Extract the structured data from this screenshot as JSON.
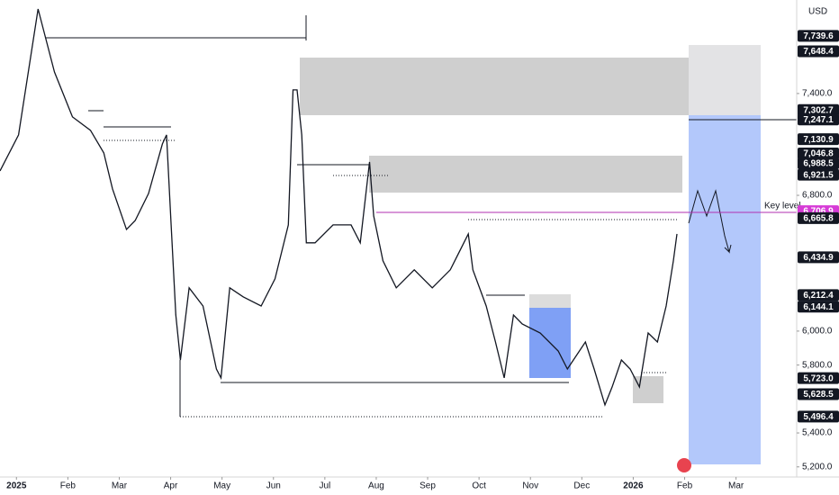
{
  "chart_data": {
    "type": "line",
    "currency": "USD",
    "annotation": "Key level",
    "x": [
      -0.32,
      0.04,
      0.42,
      0.74,
      1.09,
      1.44,
      1.7,
      1.87,
      2.14,
      2.31,
      2.57,
      2.84,
      2.92,
      3.01,
      3.1,
      3.19,
      3.36,
      3.63,
      3.89,
      3.98,
      4.15,
      4.41,
      4.76,
      5.03,
      5.29,
      5.38,
      5.46,
      5.55,
      5.64,
      5.81,
      6.16,
      6.51,
      6.69,
      6.87,
      6.95,
      7.13,
      7.39,
      7.74,
      8.09,
      8.44,
      8.79,
      8.88,
      9.14,
      9.32,
      9.49,
      9.67,
      9.84,
      10.19,
      10.54,
      10.72,
      11.07,
      11.24,
      11.45,
      11.59,
      11.77,
      11.94,
      12.12,
      12.29,
      12.47,
      12.64,
      12.78,
      12.85
    ],
    "series": [
      {
        "color": "#131722",
        "values": [
          6944,
          7156,
          7898,
          7527,
          7262,
          7183,
          7050,
          6838,
          6599,
          6652,
          6811,
          7103,
          7156,
          6626,
          6095,
          5830,
          6255,
          6148,
          5777,
          5724,
          6255,
          6202,
          6148,
          6308,
          6626,
          7421,
          7421,
          7156,
          6520,
          6520,
          6626,
          6626,
          6520,
          6997,
          6679,
          6414,
          6255,
          6361,
          6255,
          6361,
          6573,
          6361,
          6148,
          5936,
          5724,
          6095,
          6042,
          5989,
          5883,
          5777,
          5936,
          5777,
          5565,
          5671,
          5830,
          5777,
          5671,
          5989,
          5936,
          6148,
          6414,
          6573
        ]
      }
    ],
    "xlim": [
      -0.32,
      15.18
    ],
    "ylim": [
      5151,
      7951
    ],
    "xticks": [
      {
        "value": 0,
        "label": "2025"
      },
      {
        "value": 1,
        "label": "Feb"
      },
      {
        "value": 2,
        "label": "Mar"
      },
      {
        "value": 3,
        "label": "Apr"
      },
      {
        "value": 4,
        "label": "May"
      },
      {
        "value": 5,
        "label": "Jun"
      },
      {
        "value": 6,
        "label": "Jul"
      },
      {
        "value": 7,
        "label": "Aug"
      },
      {
        "value": 8,
        "label": "Sep"
      },
      {
        "value": 9,
        "label": "Oct"
      },
      {
        "value": 10,
        "label": "Nov"
      },
      {
        "value": 11,
        "label": "Dec"
      },
      {
        "value": 12,
        "label": "2026"
      },
      {
        "value": 13,
        "label": "Feb"
      },
      {
        "value": 14,
        "label": "Mar"
      }
    ],
    "yticks": [
      {
        "value": 5200,
        "label": "5,200.0"
      },
      {
        "value": 5400,
        "label": "5,400.0"
      },
      {
        "value": 5800,
        "label": "5,800.0"
      },
      {
        "value": 6000,
        "label": "6,000.0"
      },
      {
        "value": 6800,
        "label": "6,800.0"
      },
      {
        "value": 7400,
        "label": "7,400.0"
      }
    ],
    "price_tags": [
      {
        "value": 7739.6,
        "label": "7,739.6"
      },
      {
        "value": 7648.4,
        "label": "7,648.4"
      },
      {
        "value": 7302.7,
        "label": "7,302.7"
      },
      {
        "value": 7247.1,
        "label": "7,247.1"
      },
      {
        "value": 7130.9,
        "label": "7,130.9"
      },
      {
        "value": 7046.8,
        "label": "7,046.8"
      },
      {
        "value": 6988.5,
        "label": "6,988.5"
      },
      {
        "value": 6921.5,
        "label": "6,921.5"
      },
      {
        "value": 6706.9,
        "label": "6,706.9",
        "color": "#d63bd6"
      },
      {
        "value": 6665.8,
        "label": "6,665.8"
      },
      {
        "value": 6434.9,
        "label": "6,434.9"
      },
      {
        "value": 6212.4,
        "label": "6,212.4"
      },
      {
        "value": 6144.1,
        "label": "6,144.1"
      },
      {
        "value": 5723.0,
        "label": "5,723.0"
      },
      {
        "value": 5628.5,
        "label": "5,628.5"
      },
      {
        "value": 5496.4,
        "label": "5,496.4"
      }
    ]
  }
}
